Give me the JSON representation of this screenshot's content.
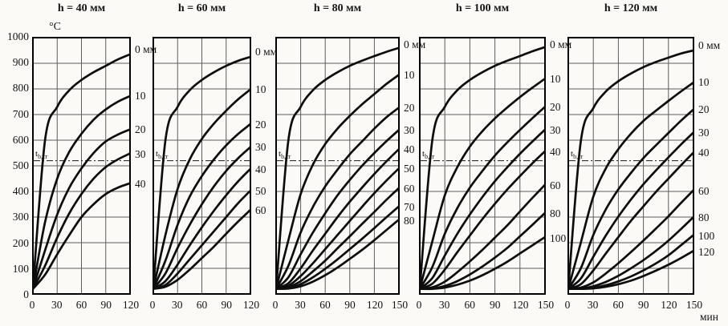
{
  "figure": {
    "y_unit": "°C",
    "x_unit": "мин",
    "critical_temp": {
      "base": "t",
      "sub": "b,cr",
      "value_c": 520
    }
  },
  "chart_data": [
    {
      "type": "line",
      "title": "h = 40 мм",
      "xlabel": "мин",
      "ylabel": "°C",
      "xlim": [
        0,
        120
      ],
      "ylim": [
        0,
        1000
      ],
      "xticks": [
        0,
        30,
        60,
        90,
        120
      ],
      "yticks": [
        0,
        100,
        200,
        300,
        400,
        500,
        600,
        700,
        800,
        900,
        1000
      ],
      "x": [
        0,
        15,
        30,
        45,
        60,
        75,
        90,
        105,
        120
      ],
      "series": [
        {
          "name": "0 мм",
          "depth_mm": 0,
          "values": [
            20,
            600,
            730,
            795,
            835,
            865,
            890,
            915,
            935
          ]
        },
        {
          "name": "10",
          "depth_mm": 10,
          "values": [
            20,
            280,
            450,
            555,
            625,
            680,
            720,
            750,
            772
          ]
        },
        {
          "name": "20",
          "depth_mm": 20,
          "values": [
            20,
            170,
            310,
            415,
            490,
            550,
            595,
            622,
            642
          ]
        },
        {
          "name": "30",
          "depth_mm": 30,
          "values": [
            20,
            110,
            220,
            315,
            390,
            450,
            495,
            525,
            548
          ]
        },
        {
          "name": "40",
          "depth_mm": 40,
          "values": [
            20,
            75,
            155,
            230,
            300,
            350,
            390,
            415,
            432
          ]
        }
      ]
    },
    {
      "type": "line",
      "title": "h = 60 мм",
      "xlim": [
        0,
        120
      ],
      "ylim": [
        0,
        1000
      ],
      "xticks": [
        0,
        30,
        60,
        90,
        120
      ],
      "x": [
        0,
        15,
        30,
        45,
        60,
        75,
        90,
        105,
        120
      ],
      "series": [
        {
          "name": "0 мм",
          "depth_mm": 0,
          "values": [
            20,
            600,
            730,
            795,
            835,
            865,
            890,
            910,
            925
          ]
        },
        {
          "name": "10",
          "depth_mm": 10,
          "values": [
            20,
            230,
            410,
            525,
            605,
            665,
            715,
            760,
            798
          ]
        },
        {
          "name": "20",
          "depth_mm": 20,
          "values": [
            20,
            130,
            270,
            380,
            460,
            525,
            580,
            625,
            663
          ]
        },
        {
          "name": "30",
          "depth_mm": 30,
          "values": [
            20,
            80,
            180,
            270,
            350,
            420,
            480,
            530,
            573
          ]
        },
        {
          "name": "40",
          "depth_mm": 40,
          "values": [
            20,
            50,
            115,
            190,
            260,
            325,
            385,
            440,
            488
          ]
        },
        {
          "name": "50",
          "depth_mm": 50,
          "values": [
            20,
            35,
            80,
            135,
            190,
            245,
            300,
            355,
            403
          ]
        },
        {
          "name": "60",
          "depth_mm": 60,
          "values": [
            20,
            28,
            55,
            95,
            140,
            185,
            235,
            283,
            328
          ]
        }
      ]
    },
    {
      "type": "line",
      "title": "h = 80 мм",
      "xlim": [
        0,
        150
      ],
      "ylim": [
        0,
        1000
      ],
      "xticks": [
        0,
        30,
        60,
        90,
        120,
        150
      ],
      "x": [
        0,
        15,
        30,
        45,
        60,
        75,
        90,
        105,
        120,
        135,
        150
      ],
      "series": [
        {
          "name": "0 мм",
          "depth_mm": 0,
          "values": [
            20,
            600,
            730,
            795,
            835,
            865,
            890,
            910,
            928,
            945,
            960
          ]
        },
        {
          "name": "10",
          "depth_mm": 10,
          "values": [
            20,
            210,
            390,
            505,
            585,
            645,
            695,
            740,
            780,
            820,
            855
          ]
        },
        {
          "name": "20",
          "depth_mm": 20,
          "values": [
            20,
            110,
            240,
            340,
            420,
            485,
            545,
            595,
            645,
            690,
            727
          ]
        },
        {
          "name": "30",
          "depth_mm": 30,
          "values": [
            20,
            65,
            155,
            240,
            315,
            385,
            445,
            500,
            550,
            597,
            640
          ]
        },
        {
          "name": "40",
          "depth_mm": 40,
          "values": [
            20,
            42,
            100,
            170,
            235,
            300,
            360,
            415,
            468,
            518,
            565
          ]
        },
        {
          "name": "50",
          "depth_mm": 50,
          "values": [
            20,
            32,
            70,
            120,
            175,
            230,
            285,
            340,
            393,
            443,
            490
          ]
        },
        {
          "name": "60",
          "depth_mm": 60,
          "values": [
            20,
            27,
            50,
            88,
            130,
            178,
            225,
            273,
            320,
            368,
            413
          ]
        },
        {
          "name": "70",
          "depth_mm": 70,
          "values": [
            20,
            23,
            38,
            65,
            98,
            135,
            175,
            215,
            257,
            300,
            342
          ]
        },
        {
          "name": "80",
          "depth_mm": 80,
          "values": [
            20,
            21,
            30,
            48,
            73,
            103,
            137,
            172,
            210,
            250,
            290
          ]
        }
      ]
    },
    {
      "type": "line",
      "title": "h = 100 мм",
      "xlim": [
        0,
        150
      ],
      "ylim": [
        0,
        1000
      ],
      "xticks": [
        0,
        30,
        60,
        90,
        120,
        150
      ],
      "x": [
        0,
        15,
        30,
        45,
        60,
        75,
        90,
        105,
        120,
        135,
        150
      ],
      "series": [
        {
          "name": "0 мм",
          "depth_mm": 0,
          "values": [
            20,
            600,
            730,
            795,
            835,
            865,
            890,
            910,
            928,
            947,
            963
          ]
        },
        {
          "name": "10",
          "depth_mm": 10,
          "values": [
            20,
            205,
            385,
            495,
            575,
            635,
            685,
            728,
            768,
            805,
            840
          ]
        },
        {
          "name": "20",
          "depth_mm": 20,
          "values": [
            20,
            105,
            235,
            335,
            415,
            480,
            540,
            592,
            640,
            686,
            730
          ]
        },
        {
          "name": "30",
          "depth_mm": 30,
          "values": [
            20,
            62,
            150,
            235,
            310,
            378,
            440,
            495,
            547,
            595,
            641
          ]
        },
        {
          "name": "40",
          "depth_mm": 40,
          "values": [
            20,
            40,
            95,
            163,
            228,
            292,
            352,
            408,
            460,
            510,
            557
          ]
        },
        {
          "name": "60",
          "depth_mm": 60,
          "values": [
            20,
            26,
            48,
            85,
            127,
            172,
            220,
            268,
            322,
            375,
            426
          ]
        },
        {
          "name": "80",
          "depth_mm": 80,
          "values": [
            20,
            21,
            31,
            50,
            76,
            107,
            142,
            180,
            225,
            270,
            316
          ]
        },
        {
          "name": "100",
          "depth_mm": 100,
          "values": [
            20,
            20,
            25,
            36,
            52,
            73,
            98,
            126,
            158,
            190,
            222
          ]
        }
      ]
    },
    {
      "type": "line",
      "title": "h = 120 мм",
      "xlim": [
        0,
        150
      ],
      "ylim": [
        0,
        1000
      ],
      "xticks": [
        0,
        30,
        60,
        90,
        120,
        150
      ],
      "x": [
        0,
        15,
        30,
        45,
        60,
        75,
        90,
        105,
        120,
        135,
        150
      ],
      "series": [
        {
          "name": "0 мм",
          "depth_mm": 0,
          "values": [
            20,
            595,
            725,
            790,
            830,
            860,
            885,
            905,
            922,
            938,
            950
          ]
        },
        {
          "name": "10",
          "depth_mm": 10,
          "values": [
            20,
            200,
            380,
            490,
            565,
            625,
            675,
            715,
            753,
            790,
            825
          ]
        },
        {
          "name": "20",
          "depth_mm": 20,
          "values": [
            20,
            100,
            230,
            330,
            408,
            472,
            530,
            580,
            628,
            676,
            720
          ]
        },
        {
          "name": "30",
          "depth_mm": 30,
          "values": [
            20,
            60,
            145,
            228,
            302,
            368,
            428,
            482,
            533,
            583,
            630
          ]
        },
        {
          "name": "40",
          "depth_mm": 40,
          "values": [
            20,
            38,
            92,
            158,
            222,
            285,
            342,
            398,
            450,
            502,
            552
          ]
        },
        {
          "name": "60",
          "depth_mm": 60,
          "values": [
            20,
            25,
            45,
            80,
            120,
            163,
            208,
            255,
            303,
            355,
            405
          ]
        },
        {
          "name": "80",
          "depth_mm": 80,
          "values": [
            20,
            21,
            30,
            47,
            71,
            100,
            132,
            168,
            208,
            253,
            300
          ]
        },
        {
          "name": "100",
          "depth_mm": 100,
          "values": [
            20,
            20,
            24,
            34,
            49,
            68,
            92,
            119,
            151,
            190,
            230
          ]
        },
        {
          "name": "120",
          "depth_mm": 120,
          "values": [
            20,
            20,
            22,
            28,
            38,
            52,
            70,
            91,
            114,
            140,
            168
          ]
        }
      ]
    }
  ]
}
